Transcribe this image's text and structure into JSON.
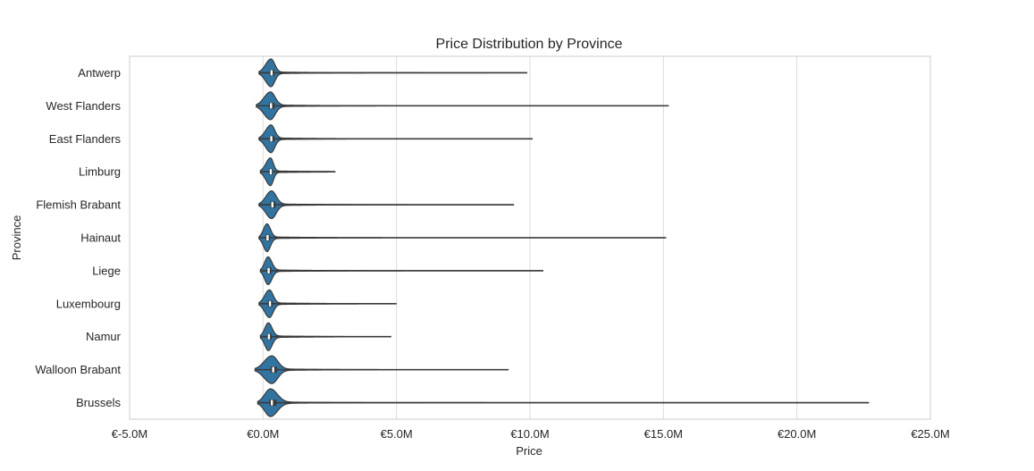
{
  "chart_data": {
    "type": "violin",
    "title": "Price Distribution by Province",
    "xlabel": "Price",
    "ylabel": "Province",
    "orientation": "horizontal",
    "xlim": [
      -5000000,
      25000000
    ],
    "x_ticks": [
      -5000000,
      0,
      5000000,
      10000000,
      15000000,
      20000000,
      25000000
    ],
    "x_tick_labels": [
      "€-5.0M",
      "€0.0M",
      "€5.0M",
      "€10.0M",
      "€15.0M",
      "€20.0M",
      "€25.0M"
    ],
    "grid": "vertical",
    "categories": [
      "Antwerp",
      "West Flanders",
      "East Flanders",
      "Limburg",
      "Flemish Brabant",
      "Hainaut",
      "Liege",
      "Luxembourg",
      "Namur",
      "Walloon Brabant",
      "Brussels"
    ],
    "series": [
      {
        "min": -150000,
        "q1": 250000,
        "median": 320000,
        "q3": 420000,
        "max": 9900000,
        "mode": 300000
      },
      {
        "min": -250000,
        "q1": 220000,
        "median": 300000,
        "q3": 430000,
        "max": 15200000,
        "mode": 280000
      },
      {
        "min": -150000,
        "q1": 240000,
        "median": 310000,
        "q3": 420000,
        "max": 10100000,
        "mode": 300000
      },
      {
        "min": -100000,
        "q1": 220000,
        "median": 290000,
        "q3": 370000,
        "max": 2700000,
        "mode": 280000
      },
      {
        "min": -150000,
        "q1": 270000,
        "median": 350000,
        "q3": 470000,
        "max": 9400000,
        "mode": 320000
      },
      {
        "min": -150000,
        "q1": 110000,
        "median": 170000,
        "q3": 260000,
        "max": 15100000,
        "mode": 150000
      },
      {
        "min": -100000,
        "q1": 140000,
        "median": 210000,
        "q3": 310000,
        "max": 10500000,
        "mode": 190000
      },
      {
        "min": -150000,
        "q1": 180000,
        "median": 260000,
        "q3": 360000,
        "max": 5000000,
        "mode": 240000
      },
      {
        "min": -100000,
        "q1": 150000,
        "median": 220000,
        "q3": 320000,
        "max": 4800000,
        "mode": 200000
      },
      {
        "min": -300000,
        "q1": 280000,
        "median": 380000,
        "q3": 520000,
        "max": 9200000,
        "mode": 330000
      },
      {
        "min": -200000,
        "q1": 240000,
        "median": 330000,
        "q3": 500000,
        "max": 22700000,
        "mode": 280000
      }
    ],
    "colors": {
      "violin": "#3274a1",
      "edge": "#3a3a3a",
      "grid": "#dcdcdc",
      "frame": "#cccccc",
      "median": "#ffffff"
    }
  }
}
